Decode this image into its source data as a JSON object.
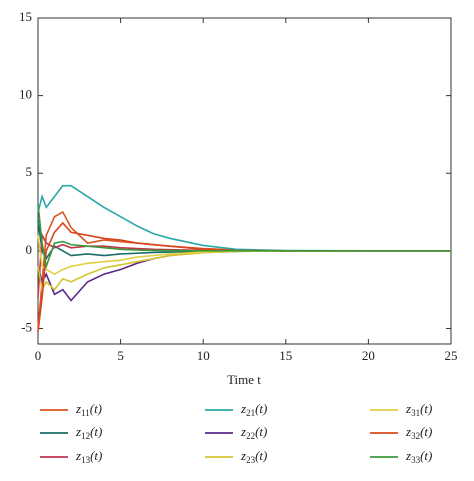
{
  "chart_data": {
    "type": "line",
    "x": [
      0,
      0.25,
      0.5,
      1,
      1.5,
      2,
      3,
      4,
      5,
      6,
      7,
      8,
      10,
      12,
      15,
      20,
      25
    ],
    "xlim": [
      0,
      25
    ],
    "xticks": [
      0,
      5,
      10,
      15,
      20,
      25
    ],
    "ylim": [
      -6,
      15
    ],
    "yticks": [
      -5,
      0,
      5,
      10,
      15
    ],
    "xlabel": "Time t",
    "series": [
      {
        "name": "z11(t)",
        "color": "#d9541e",
        "values": [
          -5,
          -2,
          1,
          2.2,
          2.5,
          1.5,
          0.5,
          0.7,
          0.6,
          0.5,
          0.4,
          0.3,
          0.15,
          0.05,
          0,
          0,
          0
        ]
      },
      {
        "name": "z12(t)",
        "color": "#1a6e6a",
        "values": [
          2,
          0,
          -0.5,
          0.3,
          0,
          -0.3,
          -0.2,
          -0.3,
          -0.2,
          -0.15,
          -0.1,
          -0.08,
          -0.03,
          0,
          0,
          0,
          0
        ]
      },
      {
        "name": "z13(t)",
        "color": "#c0334d",
        "values": [
          -3,
          1,
          0.5,
          0.2,
          0.4,
          0.2,
          0.3,
          0.3,
          0.2,
          0.15,
          0.1,
          0.08,
          0.03,
          0,
          0,
          0,
          0
        ]
      },
      {
        "name": "z21(t)",
        "color": "#2aa8a8",
        "values": [
          2.5,
          3.5,
          2.8,
          3.5,
          4.2,
          4.2,
          3.5,
          2.8,
          2.2,
          1.6,
          1.1,
          0.8,
          0.35,
          0.1,
          0.02,
          0,
          0
        ]
      },
      {
        "name": "z22(t)",
        "color": "#5b2a86",
        "values": [
          -1,
          -2,
          -1.5,
          -2.8,
          -2.5,
          -3.2,
          -2,
          -1.5,
          -1.2,
          -0.8,
          -0.5,
          -0.3,
          -0.1,
          -0.03,
          0,
          0,
          0
        ]
      },
      {
        "name": "z23(t)",
        "color": "#d4c430",
        "values": [
          -1,
          -2.5,
          -2,
          -2.5,
          -1.8,
          -2,
          -1.5,
          -1.1,
          -0.9,
          -0.7,
          -0.5,
          -0.3,
          -0.12,
          -0.04,
          0,
          0,
          0
        ]
      },
      {
        "name": "z31(t)",
        "color": "#e0d040",
        "values": [
          1,
          -1,
          -1.2,
          -1.5,
          -1.2,
          -1,
          -0.8,
          -0.7,
          -0.6,
          -0.4,
          -0.3,
          -0.2,
          -0.08,
          -0.02,
          0,
          0,
          0
        ]
      },
      {
        "name": "z32(t)",
        "color": "#d9441e",
        "values": [
          -5.2,
          -3,
          0,
          1.2,
          1.8,
          1.2,
          1,
          0.8,
          0.7,
          0.5,
          0.4,
          0.3,
          0.1,
          0.03,
          0,
          0,
          0
        ]
      },
      {
        "name": "z33(t)",
        "color": "#3a9a3a",
        "values": [
          3,
          0.5,
          -1,
          0.5,
          0.6,
          0.4,
          0.3,
          0.2,
          0.1,
          0.05,
          0.03,
          0.02,
          0,
          0,
          0,
          0,
          0
        ]
      }
    ]
  }
}
